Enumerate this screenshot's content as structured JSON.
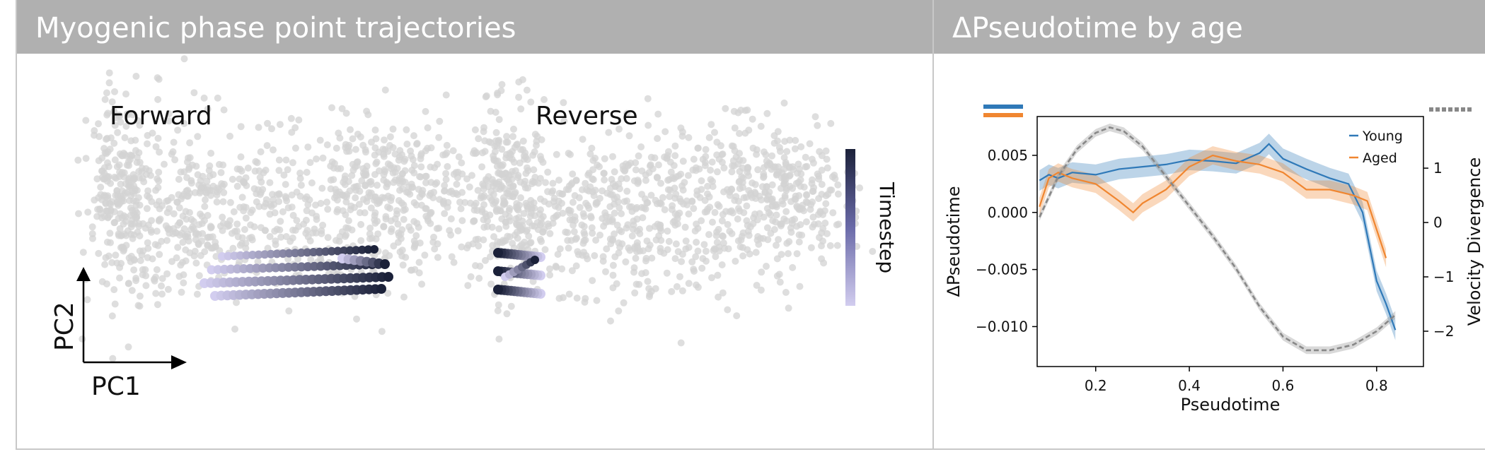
{
  "panels": {
    "left": {
      "title": "Myogenic phase point trajectories"
    },
    "right": {
      "title": "ΔPseudotime by age"
    }
  },
  "embedding": {
    "views": [
      {
        "label": "Forward"
      },
      {
        "label": "Reverse"
      }
    ],
    "axes": {
      "x_label": "PC1",
      "y_label": "PC2"
    },
    "colorbar": {
      "label": "Timestep",
      "color_low": "#d2cdef",
      "color_high": "#1b2139"
    },
    "background_point_color": "#d3d3d3"
  },
  "chart_data": {
    "type": "line",
    "title": "ΔPseudotime by age",
    "xlabel": "Pseudotime",
    "ylabel": "ΔPseudotime",
    "y2label": "Velocity Divergence",
    "xlim": [
      0.075,
      0.9
    ],
    "ylim": [
      -0.0135,
      0.0084
    ],
    "y2lim": [
      -2.65,
      1.95
    ],
    "xticks": [
      0.2,
      0.4,
      0.6,
      0.8
    ],
    "yticks": [
      0.005,
      0.0,
      -0.005,
      -0.01
    ],
    "ytick_labels": [
      "0.005",
      "0.000",
      "−0.005",
      "−0.010"
    ],
    "y2ticks": [
      1,
      0,
      -1,
      -2
    ],
    "y2tick_labels": [
      "1",
      "0",
      "−1",
      "−2"
    ],
    "xtick_labels": [
      "0.2",
      "0.4",
      "0.6",
      "0.8"
    ],
    "legend_position": "top-right",
    "series": [
      {
        "name": "Young",
        "axis": "left",
        "color": "#2f79b8",
        "x": [
          0.08,
          0.1,
          0.12,
          0.15,
          0.2,
          0.25,
          0.3,
          0.35,
          0.4,
          0.45,
          0.5,
          0.55,
          0.57,
          0.6,
          0.65,
          0.7,
          0.74,
          0.77,
          0.8,
          0.82,
          0.84
        ],
        "y": [
          0.0028,
          0.0033,
          0.003,
          0.0035,
          0.0033,
          0.0038,
          0.004,
          0.0042,
          0.0046,
          0.0045,
          0.0043,
          0.0052,
          0.006,
          0.0047,
          0.0038,
          0.003,
          0.0025,
          0.0,
          -0.006,
          -0.008,
          -0.0103
        ],
        "band": 0.0009
      },
      {
        "name": "Aged",
        "axis": "left",
        "color": "#f08630",
        "x": [
          0.08,
          0.1,
          0.12,
          0.15,
          0.2,
          0.25,
          0.28,
          0.3,
          0.35,
          0.4,
          0.45,
          0.5,
          0.55,
          0.6,
          0.65,
          0.7,
          0.75,
          0.78,
          0.8,
          0.82
        ],
        "y": [
          0.0005,
          0.003,
          0.0035,
          0.003,
          0.0025,
          0.001,
          0.0,
          0.0008,
          0.002,
          0.004,
          0.005,
          0.0045,
          0.0042,
          0.0035,
          0.002,
          0.002,
          0.0015,
          0.001,
          -0.0015,
          -0.004
        ],
        "band": 0.0008
      },
      {
        "name": "",
        "axis": "right",
        "color": "#888888",
        "dashed": true,
        "x": [
          0.08,
          0.12,
          0.16,
          0.2,
          0.23,
          0.26,
          0.3,
          0.35,
          0.4,
          0.45,
          0.5,
          0.55,
          0.6,
          0.65,
          0.7,
          0.75,
          0.8,
          0.84
        ],
        "y": [
          0.1,
          0.85,
          1.35,
          1.65,
          1.75,
          1.68,
          1.4,
          0.85,
          0.3,
          -0.25,
          -0.85,
          -1.55,
          -2.1,
          -2.35,
          -2.35,
          -2.25,
          -2.0,
          -1.7
        ],
        "band": 0.07
      }
    ]
  }
}
